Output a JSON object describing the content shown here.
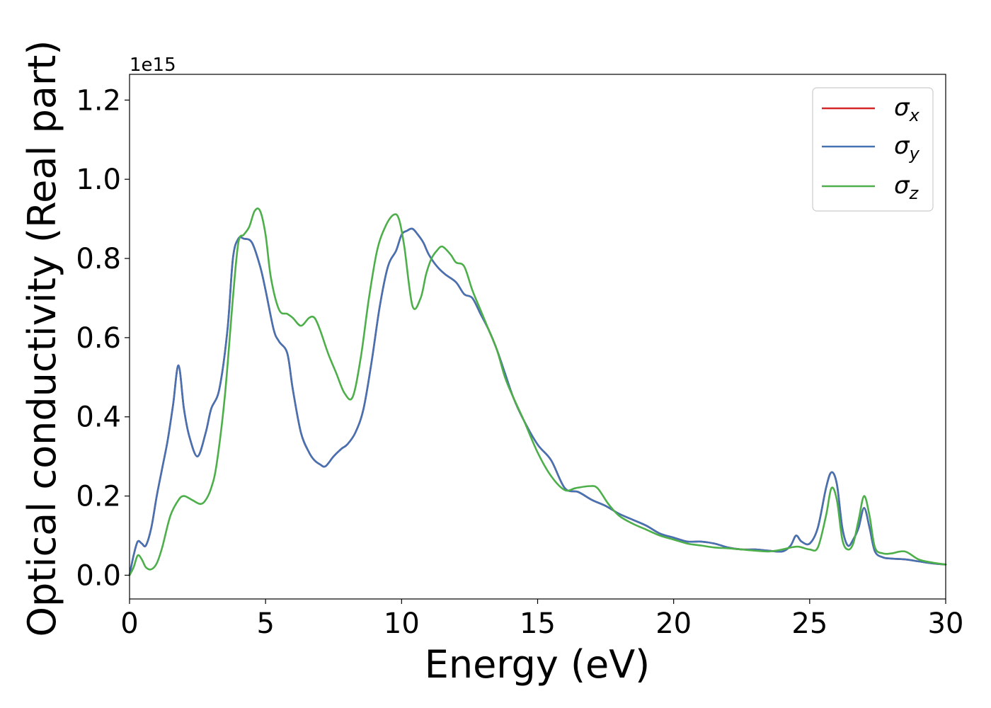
{
  "chart_data": {
    "type": "line",
    "title": "",
    "xlabel": "Energy (eV)",
    "ylabel": "Optical conductivity (Real part)",
    "offset_label": "1e15",
    "xlim": [
      0,
      30
    ],
    "ylim": [
      -0.06,
      1.265
    ],
    "xticks": [
      0,
      5,
      10,
      15,
      20,
      25,
      30
    ],
    "xtick_labels": [
      "0",
      "5",
      "10",
      "15",
      "20",
      "25",
      "30"
    ],
    "yticks": [
      0.0,
      0.2,
      0.4,
      0.6,
      0.8,
      1.0,
      1.2
    ],
    "ytick_labels": [
      "0.0",
      "0.2",
      "0.4",
      "0.6",
      "0.8",
      "1.0",
      "1.2"
    ],
    "grid": false,
    "legend_position": "top-right",
    "series": [
      {
        "name": "σx",
        "name_base": "σ",
        "name_sub": "x",
        "color": "#d62728",
        "x": [
          0,
          0.15,
          0.3,
          0.45,
          0.6,
          0.8,
          1.0,
          1.2,
          1.4,
          1.6,
          1.8,
          2.0,
          2.2,
          2.5,
          2.8,
          3.0,
          3.3,
          3.6,
          3.8,
          4.0,
          4.2,
          4.5,
          4.8,
          5.0,
          5.3,
          5.5,
          5.8,
          6.0,
          6.3,
          6.6,
          6.8,
          7.0,
          7.2,
          7.5,
          7.8,
          8.0,
          8.3,
          8.6,
          8.9,
          9.2,
          9.5,
          9.8,
          10.0,
          10.2,
          10.4,
          10.6,
          10.8,
          11.0,
          11.3,
          11.6,
          12.0,
          12.3,
          12.6,
          12.9,
          13.2,
          13.5,
          13.8,
          14.1,
          14.5,
          15.0,
          15.5,
          16.0,
          16.5,
          17.0,
          17.5,
          18.0,
          18.5,
          19.0,
          19.5,
          20.0,
          20.5,
          21.0,
          21.5,
          22.0,
          22.5,
          23.0,
          23.5,
          24.0,
          24.3,
          24.5,
          24.7,
          25.0,
          25.3,
          25.6,
          25.8,
          26.0,
          26.2,
          26.4,
          26.6,
          26.8,
          27.0,
          27.2,
          27.4,
          27.7,
          28.0,
          28.5,
          29.0,
          29.5,
          30.0
        ],
        "y": [
          0.0,
          0.05,
          0.085,
          0.08,
          0.075,
          0.12,
          0.2,
          0.27,
          0.34,
          0.43,
          0.53,
          0.42,
          0.35,
          0.3,
          0.36,
          0.42,
          0.47,
          0.62,
          0.8,
          0.85,
          0.85,
          0.84,
          0.78,
          0.72,
          0.62,
          0.59,
          0.56,
          0.47,
          0.36,
          0.31,
          0.29,
          0.28,
          0.275,
          0.3,
          0.32,
          0.33,
          0.36,
          0.42,
          0.54,
          0.68,
          0.78,
          0.82,
          0.86,
          0.87,
          0.875,
          0.86,
          0.84,
          0.81,
          0.78,
          0.76,
          0.74,
          0.71,
          0.7,
          0.66,
          0.62,
          0.57,
          0.51,
          0.45,
          0.39,
          0.33,
          0.29,
          0.22,
          0.21,
          0.19,
          0.175,
          0.155,
          0.14,
          0.125,
          0.105,
          0.095,
          0.085,
          0.085,
          0.08,
          0.07,
          0.065,
          0.065,
          0.062,
          0.06,
          0.075,
          0.1,
          0.085,
          0.08,
          0.12,
          0.22,
          0.26,
          0.23,
          0.12,
          0.075,
          0.09,
          0.12,
          0.17,
          0.12,
          0.06,
          0.045,
          0.042,
          0.04,
          0.035,
          0.03,
          0.027
        ]
      },
      {
        "name": "σy",
        "name_base": "σ",
        "name_sub": "y",
        "color": "#4472b3",
        "x": [
          0,
          0.15,
          0.3,
          0.45,
          0.6,
          0.8,
          1.0,
          1.2,
          1.4,
          1.6,
          1.8,
          2.0,
          2.2,
          2.5,
          2.8,
          3.0,
          3.3,
          3.6,
          3.8,
          4.0,
          4.2,
          4.5,
          4.8,
          5.0,
          5.3,
          5.5,
          5.8,
          6.0,
          6.3,
          6.6,
          6.8,
          7.0,
          7.2,
          7.5,
          7.8,
          8.0,
          8.3,
          8.6,
          8.9,
          9.2,
          9.5,
          9.8,
          10.0,
          10.2,
          10.4,
          10.6,
          10.8,
          11.0,
          11.3,
          11.6,
          12.0,
          12.3,
          12.6,
          12.9,
          13.2,
          13.5,
          13.8,
          14.1,
          14.5,
          15.0,
          15.5,
          16.0,
          16.5,
          17.0,
          17.5,
          18.0,
          18.5,
          19.0,
          19.5,
          20.0,
          20.5,
          21.0,
          21.5,
          22.0,
          22.5,
          23.0,
          23.5,
          24.0,
          24.3,
          24.5,
          24.7,
          25.0,
          25.3,
          25.6,
          25.8,
          26.0,
          26.2,
          26.4,
          26.6,
          26.8,
          27.0,
          27.2,
          27.4,
          27.7,
          28.0,
          28.5,
          29.0,
          29.5,
          30.0
        ],
        "y": [
          0.0,
          0.05,
          0.085,
          0.08,
          0.075,
          0.12,
          0.2,
          0.27,
          0.34,
          0.43,
          0.53,
          0.42,
          0.35,
          0.3,
          0.36,
          0.42,
          0.47,
          0.62,
          0.8,
          0.85,
          0.85,
          0.84,
          0.78,
          0.72,
          0.62,
          0.59,
          0.56,
          0.47,
          0.36,
          0.31,
          0.29,
          0.28,
          0.275,
          0.3,
          0.32,
          0.33,
          0.36,
          0.42,
          0.54,
          0.68,
          0.78,
          0.82,
          0.86,
          0.87,
          0.875,
          0.86,
          0.84,
          0.81,
          0.78,
          0.76,
          0.74,
          0.71,
          0.7,
          0.66,
          0.62,
          0.57,
          0.51,
          0.45,
          0.39,
          0.33,
          0.29,
          0.22,
          0.21,
          0.19,
          0.175,
          0.155,
          0.14,
          0.125,
          0.105,
          0.095,
          0.085,
          0.085,
          0.08,
          0.07,
          0.065,
          0.065,
          0.062,
          0.06,
          0.075,
          0.1,
          0.085,
          0.08,
          0.12,
          0.22,
          0.26,
          0.23,
          0.12,
          0.075,
          0.09,
          0.12,
          0.17,
          0.12,
          0.06,
          0.045,
          0.042,
          0.04,
          0.035,
          0.03,
          0.027
        ]
      },
      {
        "name": "σz",
        "name_base": "σ",
        "name_sub": "z",
        "color": "#4daf4a",
        "x": [
          0,
          0.15,
          0.3,
          0.45,
          0.6,
          0.8,
          1.0,
          1.2,
          1.5,
          1.8,
          2.0,
          2.3,
          2.6,
          2.8,
          3.0,
          3.2,
          3.5,
          3.8,
          4.0,
          4.2,
          4.4,
          4.6,
          4.8,
          5.0,
          5.2,
          5.5,
          5.8,
          6.0,
          6.3,
          6.6,
          6.8,
          7.0,
          7.3,
          7.6,
          7.9,
          8.2,
          8.5,
          8.8,
          9.1,
          9.4,
          9.7,
          9.9,
          10.1,
          10.4,
          10.7,
          10.9,
          11.1,
          11.3,
          11.5,
          11.8,
          12.0,
          12.3,
          12.6,
          12.9,
          13.2,
          13.5,
          13.8,
          14.1,
          14.5,
          15.0,
          15.5,
          16.0,
          16.4,
          16.9,
          17.2,
          17.6,
          18.0,
          18.5,
          19.0,
          19.5,
          20.0,
          20.5,
          21.0,
          21.5,
          22.0,
          22.5,
          23.0,
          23.5,
          24.0,
          24.3,
          24.6,
          25.0,
          25.3,
          25.6,
          25.8,
          26.0,
          26.2,
          26.4,
          26.6,
          26.8,
          27.0,
          27.2,
          27.4,
          27.7,
          28.0,
          28.5,
          29.0,
          29.5,
          30.0
        ],
        "y": [
          0.0,
          0.02,
          0.05,
          0.04,
          0.02,
          0.015,
          0.03,
          0.07,
          0.15,
          0.19,
          0.2,
          0.19,
          0.18,
          0.19,
          0.22,
          0.28,
          0.45,
          0.7,
          0.84,
          0.86,
          0.88,
          0.92,
          0.92,
          0.86,
          0.75,
          0.67,
          0.66,
          0.65,
          0.63,
          0.65,
          0.65,
          0.62,
          0.56,
          0.51,
          0.46,
          0.45,
          0.55,
          0.7,
          0.82,
          0.88,
          0.91,
          0.9,
          0.83,
          0.68,
          0.7,
          0.76,
          0.8,
          0.82,
          0.83,
          0.81,
          0.79,
          0.78,
          0.72,
          0.67,
          0.62,
          0.57,
          0.5,
          0.45,
          0.39,
          0.31,
          0.25,
          0.215,
          0.22,
          0.225,
          0.22,
          0.18,
          0.15,
          0.13,
          0.115,
          0.1,
          0.09,
          0.08,
          0.075,
          0.07,
          0.068,
          0.065,
          0.062,
          0.06,
          0.065,
          0.07,
          0.072,
          0.065,
          0.07,
          0.15,
          0.22,
          0.19,
          0.09,
          0.065,
          0.08,
          0.14,
          0.2,
          0.15,
          0.07,
          0.055,
          0.055,
          0.06,
          0.04,
          0.032,
          0.027
        ]
      }
    ]
  }
}
